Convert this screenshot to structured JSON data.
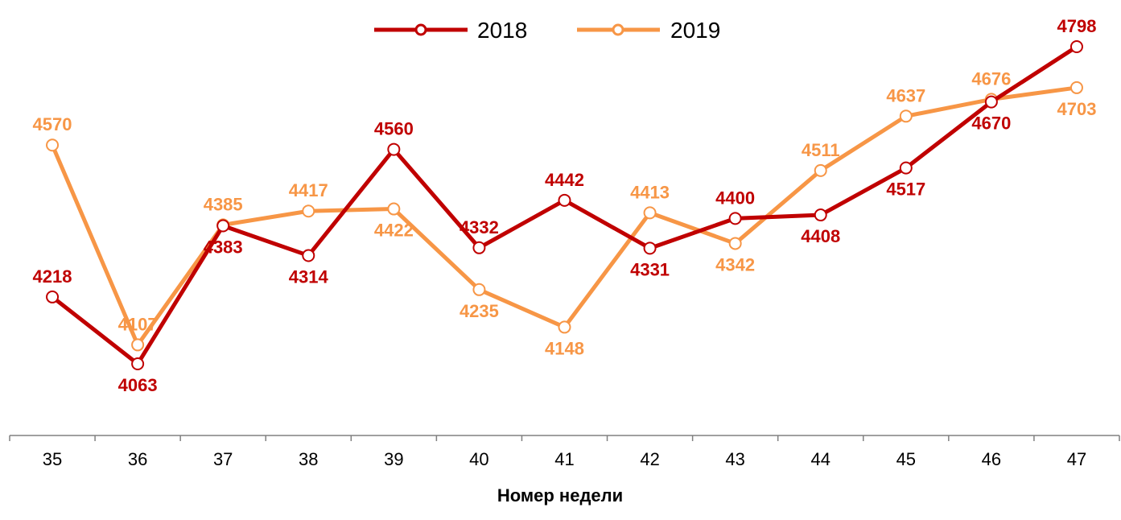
{
  "chart_data": {
    "type": "line",
    "title": "",
    "xlabel": "Номер недели",
    "ylabel": "",
    "categories": [
      "35",
      "36",
      "37",
      "38",
      "39",
      "40",
      "41",
      "42",
      "43",
      "44",
      "45",
      "46",
      "47"
    ],
    "ylim": [
      3800,
      4850
    ],
    "grid": false,
    "legend": {
      "position": "top-center"
    },
    "series": [
      {
        "name": "2018",
        "color": "#C00000",
        "values": [
          4218,
          4063,
          4383,
          4314,
          4560,
          4332,
          4442,
          4331,
          4400,
          4408,
          4517,
          4670,
          4798
        ],
        "labels": [
          "4218",
          "4063",
          "4383",
          "4314",
          "4560",
          "4332",
          "4442",
          "4331",
          "4400",
          "4408",
          "4517",
          "4670",
          "4798"
        ]
      },
      {
        "name": "2019",
        "color": "#F79646",
        "values": [
          4570,
          4107,
          4385,
          4417,
          4422,
          4235,
          4148,
          4413,
          4342,
          4511,
          4637,
          4676,
          4703
        ],
        "labels": [
          "4570",
          "4107",
          "4385",
          "4417",
          "4422",
          "4235",
          "4148",
          "4413",
          "4342",
          "4511",
          "4637",
          "4676",
          "4703"
        ]
      }
    ]
  }
}
